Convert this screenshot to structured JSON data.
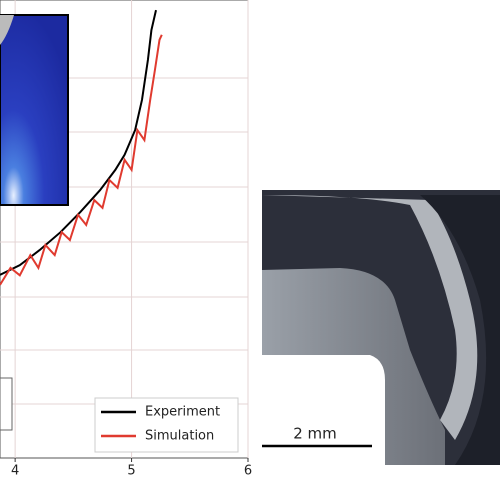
{
  "chart_data": {
    "type": "line",
    "xlim": [
      3.87,
      6
    ],
    "ylim": [
      0,
      10
    ],
    "xticks": [
      4,
      5,
      6
    ],
    "grid": true,
    "legend": "lower right",
    "series": [
      {
        "name": "Experiment",
        "color": "#000000",
        "x": [
          3.87,
          4.04,
          4.21,
          4.39,
          4.56,
          4.73,
          4.86,
          4.94,
          5.03,
          5.09,
          5.14,
          5.17,
          5.21
        ],
        "values": [
          4.0,
          4.21,
          4.54,
          4.93,
          5.37,
          5.85,
          6.29,
          6.62,
          7.16,
          7.82,
          8.69,
          9.34,
          9.78
        ]
      },
      {
        "name": "Simulation",
        "color": "#e03a2f",
        "x": [
          3.87,
          3.96,
          4.04,
          4.13,
          4.2,
          4.26,
          4.34,
          4.4,
          4.47,
          4.54,
          4.61,
          4.68,
          4.75,
          4.81,
          4.88,
          4.94,
          5.0,
          5.05,
          5.11,
          5.16,
          5.2,
          5.24,
          5.26
        ],
        "values": [
          3.78,
          4.15,
          3.99,
          4.43,
          4.15,
          4.65,
          4.43,
          4.93,
          4.76,
          5.31,
          5.09,
          5.63,
          5.46,
          6.07,
          5.9,
          6.51,
          6.29,
          7.16,
          6.94,
          7.82,
          8.47,
          9.13,
          9.24
        ]
      }
    ]
  },
  "micrograph": {
    "scale_bar_label": "2 mm"
  }
}
